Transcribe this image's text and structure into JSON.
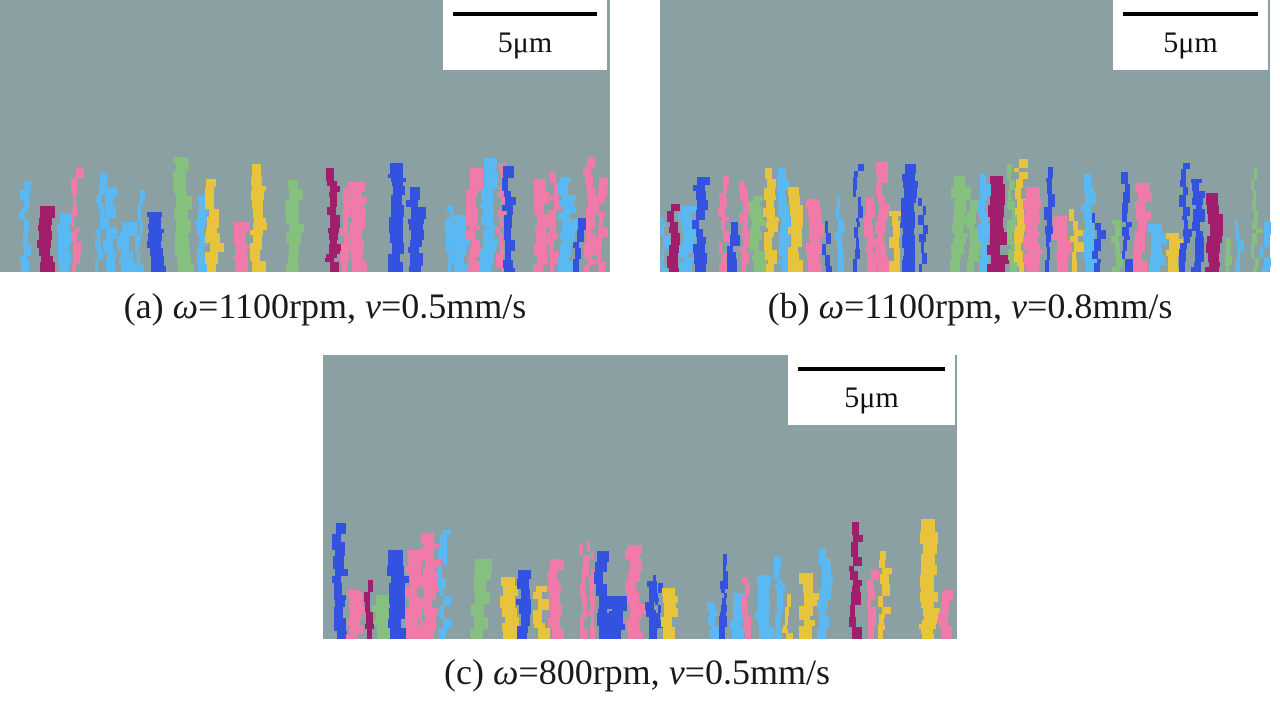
{
  "panels": [
    {
      "scale_bar": "5μm",
      "caption": [
        "(a) ",
        "ω",
        "=1100rpm, ",
        "v",
        "=0.5mm/s"
      ]
    },
    {
      "scale_bar": "5μm",
      "caption": [
        "(b) ",
        "ω",
        "=1100rpm, ",
        "v",
        "=0.8mm/s"
      ]
    },
    {
      "scale_bar": "5μm",
      "caption": [
        "(c)  ",
        "ω",
        "=800rpm, ",
        "v",
        "=0.5mm/s"
      ]
    }
  ]
}
